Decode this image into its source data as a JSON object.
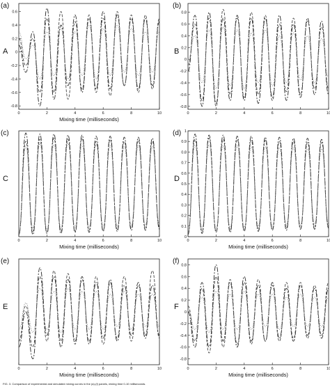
{
  "caption": "FIG. 3. Comparison of experimental and simulated mixing curves in the (a)-(f) panels, mixing time 0-10 milliseconds.",
  "chart_data": [
    {
      "type": "line",
      "panel_label": "(a)",
      "row_letter": "A",
      "xlabel": "Mixing time (milliseconds)",
      "ylabel": "",
      "xlim": [
        0,
        10
      ],
      "ylim": [
        -0.85,
        0.72
      ],
      "xticks": [
        "0",
        "2",
        "4",
        "6",
        "8",
        "10"
      ],
      "yticks": [
        "0.6",
        "0.4",
        "0.2",
        "0",
        "-0.2",
        "-0.4",
        "-0.6",
        "-0.8"
      ],
      "legend": "none",
      "grid": false,
      "series": [
        {
          "style": "dash-dot",
          "x": [
            0,
            0.5,
            1,
            1.5,
            2,
            2.5,
            3,
            3.5,
            4,
            4.5,
            5,
            5.5,
            6,
            6.5,
            7,
            7.5,
            8,
            8.5,
            9,
            9.5,
            10
          ],
          "y": [
            0.1,
            -0.3,
            0.3,
            -0.8,
            0.65,
            -0.7,
            0.4,
            -0.5,
            0.55,
            -0.6,
            0.5,
            -0.55,
            0.6,
            -0.55,
            0.55,
            -0.5,
            0.5,
            -0.55,
            0.5,
            -0.5,
            0.45
          ]
        },
        {
          "style": "dashed",
          "x": [
            0,
            0.5,
            1,
            1.5,
            2,
            2.5,
            3,
            3.5,
            4,
            4.5,
            5,
            5.5,
            6,
            6.5,
            7,
            7.5,
            8,
            8.5,
            9,
            9.5,
            10
          ],
          "y": [
            0.2,
            -0.2,
            0.2,
            -0.6,
            0.5,
            -0.6,
            0.6,
            -0.7,
            0.45,
            -0.55,
            0.55,
            -0.6,
            0.5,
            -0.65,
            0.6,
            -0.5,
            0.55,
            -0.6,
            0.55,
            -0.55,
            0.5
          ]
        },
        {
          "style": "dotted",
          "x": [
            0,
            0.5,
            1,
            1.5,
            2,
            2.5,
            3,
            3.5,
            4,
            4.5,
            5,
            5.5,
            6,
            6.5,
            7,
            7.5,
            8,
            8.5,
            9,
            9.5,
            10
          ],
          "y": [
            0.3,
            -0.1,
            0.1,
            -0.4,
            0.3,
            -0.35,
            0.35,
            -0.4,
            0.3,
            -0.35,
            0.4,
            -0.4,
            0.35,
            -0.35,
            0.4,
            -0.3,
            0.35,
            -0.35,
            0.3,
            -0.3,
            0.3
          ]
        }
      ]
    },
    {
      "type": "line",
      "panel_label": "(b)",
      "row_letter": "B",
      "xlabel": "",
      "ylabel": "",
      "xlim": [
        0,
        10
      ],
      "ylim": [
        -0.85,
        0.95
      ],
      "xticks": [
        "0",
        "2",
        "4",
        "6",
        "8",
        "10"
      ],
      "yticks": [
        "0.8",
        "0.6",
        "0.4",
        "0.2",
        "0",
        "-0.2",
        "-0.4",
        "-0.6",
        "-0.8"
      ],
      "legend": "none",
      "grid": false,
      "series": [
        {
          "style": "dash-dot",
          "x": [
            0,
            0.5,
            1,
            1.5,
            2,
            2.5,
            3,
            3.5,
            4,
            4.5,
            5,
            5.5,
            6,
            6.5,
            7,
            7.5,
            8,
            8.5,
            9,
            9.5,
            10
          ],
          "y": [
            -0.2,
            0.75,
            -0.8,
            0.8,
            -0.75,
            0.7,
            -0.7,
            0.75,
            -0.7,
            0.7,
            -0.75,
            0.7,
            -0.65,
            0.75,
            -0.7,
            0.6,
            -0.65,
            0.7,
            -0.6,
            0.65,
            -0.6
          ]
        },
        {
          "style": "dashed",
          "x": [
            0,
            0.5,
            1,
            1.5,
            2,
            2.5,
            3,
            3.5,
            4,
            4.5,
            5,
            5.5,
            6,
            6.5,
            7,
            7.5,
            8,
            8.5,
            9,
            9.5,
            10
          ],
          "y": [
            -0.1,
            0.6,
            -0.7,
            0.7,
            -0.8,
            0.85,
            -0.6,
            0.7,
            -0.65,
            0.8,
            -0.6,
            0.75,
            -0.7,
            0.6,
            -0.55,
            0.7,
            -0.6,
            0.65,
            -0.5,
            0.55,
            -0.5
          ]
        },
        {
          "style": "dotted",
          "x": [
            0,
            0.5,
            1,
            1.5,
            2,
            2.5,
            3,
            3.5,
            4,
            4.5,
            5,
            5.5,
            6,
            6.5,
            7,
            7.5,
            8,
            8.5,
            9,
            9.5,
            10
          ],
          "y": [
            0.0,
            0.4,
            -0.4,
            0.5,
            -0.5,
            0.55,
            -0.45,
            0.5,
            -0.5,
            0.45,
            -0.4,
            0.5,
            -0.45,
            0.4,
            -0.4,
            0.45,
            -0.35,
            0.4,
            -0.4,
            0.35,
            -0.3
          ]
        }
      ]
    },
    {
      "type": "line",
      "panel_label": "(c)",
      "row_letter": "C",
      "xlabel": "Mixing time (milliseconds)",
      "ylabel": "",
      "xlim": [
        0,
        10
      ],
      "ylim": [
        0,
        1
      ],
      "xticks": [
        "0",
        "2",
        "4",
        "6",
        "8",
        "10"
      ],
      "yticks": [],
      "legend": "none",
      "grid": false,
      "series": [
        {
          "style": "dash-dot",
          "x": [
            0,
            0.5,
            1,
            1.5,
            2,
            2.5,
            3,
            3.5,
            4,
            4.5,
            5,
            5.5,
            6,
            6.5,
            7,
            7.5,
            8,
            8.5,
            9,
            9.5,
            10
          ],
          "y": [
            0.02,
            0.98,
            0.02,
            0.97,
            0.03,
            0.97,
            0.03,
            0.96,
            0.04,
            0.96,
            0.04,
            0.95,
            0.05,
            0.95,
            0.05,
            0.94,
            0.06,
            0.94,
            0.06,
            0.93,
            0.07
          ]
        },
        {
          "style": "dashed",
          "x": [
            0,
            0.5,
            1,
            1.5,
            2,
            2.5,
            3,
            3.5,
            4,
            4.5,
            5,
            5.5,
            6,
            6.5,
            7,
            7.5,
            8,
            8.5,
            9,
            9.5,
            10
          ],
          "y": [
            0.02,
            0.9,
            0.05,
            0.92,
            0.04,
            0.93,
            0.05,
            0.92,
            0.05,
            0.93,
            0.06,
            0.9,
            0.06,
            0.92,
            0.07,
            0.9,
            0.08,
            0.91,
            0.08,
            0.9,
            0.09
          ]
        },
        {
          "style": "dotted",
          "x": [
            0,
            0.5,
            1,
            1.5,
            2,
            2.5,
            3,
            3.5,
            4,
            4.5,
            5,
            5.5,
            6,
            6.5,
            7,
            7.5,
            8,
            8.5,
            9,
            9.5,
            10
          ],
          "y": [
            0.03,
            0.85,
            0.08,
            0.88,
            0.07,
            0.87,
            0.08,
            0.88,
            0.09,
            0.86,
            0.09,
            0.87,
            0.1,
            0.86,
            0.1,
            0.85,
            0.11,
            0.86,
            0.11,
            0.85,
            0.12
          ]
        }
      ]
    },
    {
      "type": "line",
      "panel_label": "(d)",
      "row_letter": "D",
      "xlabel": "Mixing time (milliseconds)",
      "ylabel": "",
      "xlim": [
        0,
        10
      ],
      "ylim": [
        0,
        1
      ],
      "xticks": [
        "0",
        "2",
        "4",
        "6",
        "8",
        "10"
      ],
      "yticks": [
        "1",
        "0.9",
        "0.8",
        "0.7",
        "0.6",
        "0.5",
        "0.4",
        "0.3",
        "0.2",
        "0.1",
        "0"
      ],
      "legend": "none",
      "grid": false,
      "series": [
        {
          "style": "dash-dot",
          "x": [
            0,
            0.5,
            1,
            1.5,
            2,
            2.5,
            3,
            3.5,
            4,
            4.5,
            5,
            5.5,
            6,
            6.5,
            7,
            7.5,
            8,
            8.5,
            9,
            9.5,
            10
          ],
          "y": [
            0.02,
            0.97,
            0.03,
            0.96,
            0.04,
            0.96,
            0.04,
            0.95,
            0.05,
            0.95,
            0.05,
            0.94,
            0.06,
            0.94,
            0.06,
            0.93,
            0.07,
            0.93,
            0.07,
            0.92,
            0.08
          ]
        },
        {
          "style": "dashed",
          "x": [
            0,
            0.5,
            1,
            1.5,
            2,
            2.5,
            3,
            3.5,
            4,
            4.5,
            5,
            5.5,
            6,
            6.5,
            7,
            7.5,
            8,
            8.5,
            9,
            9.5,
            10
          ],
          "y": [
            0.03,
            0.92,
            0.05,
            0.93,
            0.05,
            0.92,
            0.06,
            0.92,
            0.06,
            0.91,
            0.07,
            0.91,
            0.07,
            0.9,
            0.08,
            0.9,
            0.08,
            0.89,
            0.09,
            0.89,
            0.09
          ]
        },
        {
          "style": "dotted",
          "x": [
            0,
            0.5,
            1,
            1.5,
            2,
            2.5,
            3,
            3.5,
            4,
            4.5,
            5,
            5.5,
            6,
            6.5,
            7,
            7.5,
            8,
            8.5,
            9,
            9.5,
            10
          ],
          "y": [
            0.04,
            0.86,
            0.08,
            0.87,
            0.08,
            0.86,
            0.09,
            0.86,
            0.09,
            0.85,
            0.1,
            0.85,
            0.1,
            0.84,
            0.11,
            0.84,
            0.11,
            0.83,
            0.12,
            0.83,
            0.12
          ]
        }
      ]
    },
    {
      "type": "line",
      "panel_label": "(e)",
      "row_letter": "E",
      "xlabel": "Mixing time (milliseconds)",
      "ylabel": "",
      "xlim": [
        0,
        10
      ],
      "ylim": [
        -0.9,
        0.9
      ],
      "xticks": [
        "0",
        "2",
        "4",
        "6",
        "8",
        "10"
      ],
      "yticks": [],
      "legend": "none",
      "grid": false,
      "series": [
        {
          "style": "dash-dot",
          "x": [
            0,
            0.5,
            1,
            1.5,
            2,
            2.5,
            3,
            3.5,
            4,
            4.5,
            5,
            5.5,
            6,
            6.5,
            7,
            7.5,
            8,
            8.5,
            9,
            9.5,
            10
          ],
          "y": [
            -0.6,
            0.0,
            -0.8,
            0.75,
            -0.4,
            0.6,
            -0.6,
            0.55,
            -0.5,
            0.6,
            -0.55,
            0.5,
            -0.45,
            0.55,
            -0.5,
            0.45,
            -0.4,
            0.5,
            -0.45,
            0.45,
            -0.4
          ]
        },
        {
          "style": "dashed",
          "x": [
            0,
            0.5,
            1,
            1.5,
            2,
            2.5,
            3,
            3.5,
            4,
            4.5,
            5,
            5.5,
            6,
            6.5,
            7,
            7.5,
            8,
            8.5,
            9,
            9.5,
            10
          ],
          "y": [
            -0.5,
            0.1,
            -0.6,
            0.6,
            -0.5,
            0.7,
            -0.5,
            0.65,
            -0.55,
            0.55,
            -0.5,
            0.6,
            -0.55,
            0.5,
            -0.45,
            0.6,
            -0.5,
            0.45,
            -0.4,
            0.7,
            -0.45
          ]
        },
        {
          "style": "dotted",
          "x": [
            0,
            0.5,
            1,
            1.5,
            2,
            2.5,
            3,
            3.5,
            4,
            4.5,
            5,
            5.5,
            6,
            6.5,
            7,
            7.5,
            8,
            8.5,
            9,
            9.5,
            10
          ],
          "y": [
            -0.3,
            0.15,
            -0.35,
            0.4,
            -0.3,
            0.35,
            -0.35,
            0.4,
            -0.3,
            0.35,
            -0.3,
            0.35,
            -0.3,
            0.3,
            -0.25,
            0.35,
            -0.3,
            0.3,
            -0.25,
            0.3,
            -0.25
          ]
        }
      ]
    },
    {
      "type": "line",
      "panel_label": "(f)",
      "row_letter": "F",
      "xlabel": "Mixing time (milliseconds)",
      "ylabel": "",
      "xlim": [
        0,
        10
      ],
      "ylim": [
        -0.9,
        0.9
      ],
      "xticks": [
        "0",
        "2",
        "4",
        "6",
        "8",
        "10"
      ],
      "yticks": [
        "0.8",
        "0.6",
        "0.4",
        "0.2",
        "0",
        "-0.2",
        "-0.4",
        "-0.6",
        "-0.8"
      ],
      "legend": "none",
      "grid": false,
      "series": [
        {
          "style": "dash-dot",
          "x": [
            0,
            0.5,
            1,
            1.5,
            2,
            2.5,
            3,
            3.5,
            4,
            4.5,
            5,
            5.5,
            6,
            6.5,
            7,
            7.5,
            8,
            8.5,
            9,
            9.5,
            10
          ],
          "y": [
            0.0,
            -0.6,
            0.5,
            -0.6,
            0.8,
            -0.5,
            0.5,
            -0.6,
            0.6,
            -0.5,
            0.45,
            -0.5,
            0.5,
            -0.45,
            0.4,
            -0.5,
            0.45,
            -0.4,
            0.4,
            -0.45,
            0.4
          ]
        },
        {
          "style": "dashed",
          "x": [
            0,
            0.5,
            1,
            1.5,
            2,
            2.5,
            3,
            3.5,
            4,
            4.5,
            5,
            5.5,
            6,
            6.5,
            7,
            7.5,
            8,
            8.5,
            9,
            9.5,
            10
          ],
          "y": [
            0.1,
            -0.5,
            0.4,
            -0.7,
            0.6,
            -0.6,
            0.55,
            -0.55,
            0.5,
            -0.55,
            0.55,
            -0.5,
            0.45,
            -0.5,
            0.5,
            -0.45,
            0.5,
            -0.45,
            0.45,
            -0.4,
            0.5
          ]
        },
        {
          "style": "dotted",
          "x": [
            0,
            0.5,
            1,
            1.5,
            2,
            2.5,
            3,
            3.5,
            4,
            4.5,
            5,
            5.5,
            6,
            6.5,
            7,
            7.5,
            8,
            8.5,
            9,
            9.5,
            10
          ],
          "y": [
            0.05,
            -0.3,
            0.25,
            -0.35,
            0.35,
            -0.3,
            0.3,
            -0.3,
            0.35,
            -0.3,
            0.3,
            -0.25,
            0.3,
            -0.3,
            0.25,
            -0.25,
            0.3,
            -0.25,
            0.25,
            -0.25,
            0.25
          ]
        }
      ]
    }
  ]
}
